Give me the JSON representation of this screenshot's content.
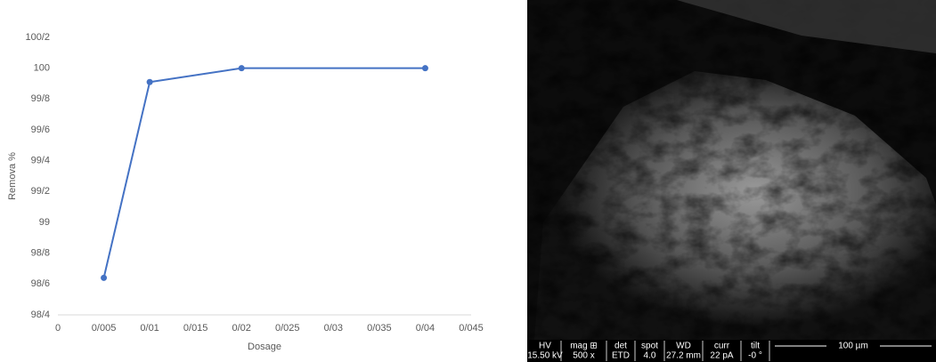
{
  "chart_data": {
    "type": "line",
    "x_label": "Dosage",
    "y_label": "Remova %",
    "x": [
      0.005,
      0.01,
      0.02,
      0.04
    ],
    "series": [
      {
        "name": "Remova %",
        "color": "#4472c4",
        "values": [
          98.64,
          99.91,
          100,
          100
        ]
      }
    ],
    "xlim": [
      0,
      0.045
    ],
    "xticks": [
      0,
      {
        "value": 0.005,
        "label": "0/005"
      },
      {
        "value": 0.01,
        "label": "0/01"
      },
      {
        "value": 0.015,
        "label": "0/015"
      },
      {
        "value": 0.02,
        "label": "0/02"
      },
      {
        "value": 0.025,
        "label": "0/025"
      },
      {
        "value": 0.03,
        "label": "0/03"
      },
      {
        "value": 0.035,
        "label": "0/035"
      },
      {
        "value": 0.04,
        "label": "0/04"
      },
      {
        "value": 0.045,
        "label": "0/045"
      }
    ],
    "ylim": [
      98.4,
      100.2
    ],
    "yticks": [
      {
        "value": 98.4,
        "label": "98/4"
      },
      {
        "value": 98.6,
        "label": "98/6"
      },
      {
        "value": 98.8,
        "label": "98/8"
      },
      99,
      {
        "value": 99.2,
        "label": "99/2"
      },
      {
        "value": 99.4,
        "label": "99/4"
      },
      {
        "value": 99.6,
        "label": "99/6"
      },
      {
        "value": 99.8,
        "label": "99/8"
      },
      100,
      {
        "value": 100.2,
        "label": "100/2"
      }
    ],
    "grid": false
  },
  "sem_panel": {
    "headers": [
      "HV",
      "mag ⊞",
      "det",
      "spot",
      "WD",
      "curr",
      "tilt"
    ],
    "values": [
      "15.50 kV",
      "500 x",
      "ETD",
      "4.0",
      "27.2 mm",
      "22 pA",
      "-0 °"
    ],
    "scale_bar": "100 µm"
  }
}
